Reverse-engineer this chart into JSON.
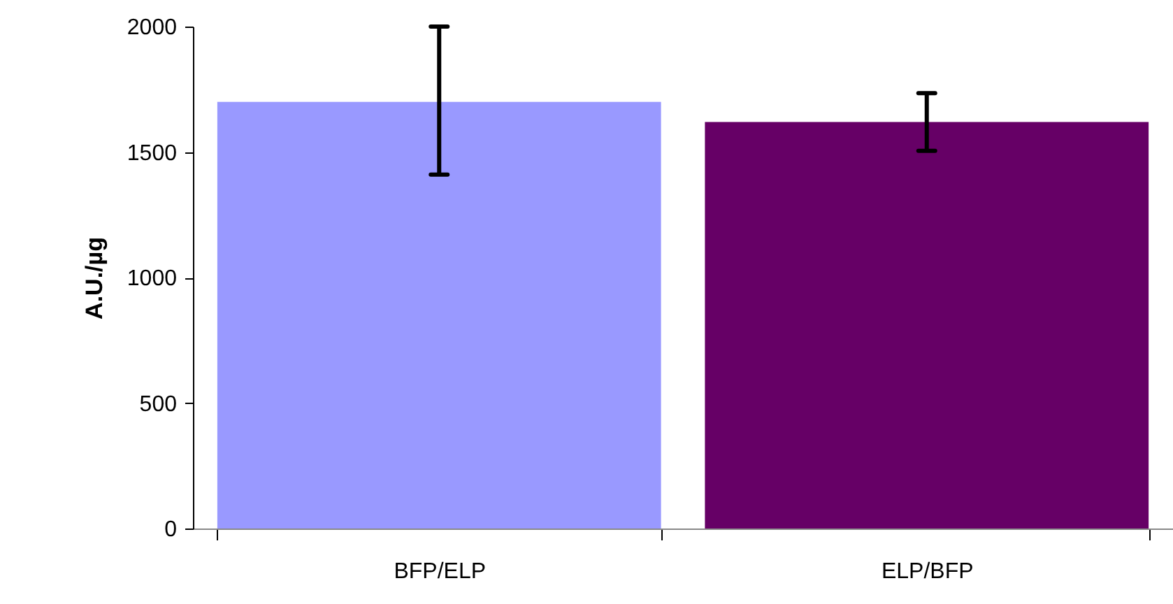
{
  "chart_data": {
    "type": "bar",
    "ylabel": "A.U./µg",
    "categories": [
      "BFP/ELP",
      "ELP/BFP"
    ],
    "values": [
      1700,
      1620
    ],
    "colors": [
      "#9999ff",
      "#660066"
    ],
    "errors": [
      [
        1410,
        2000
      ],
      [
        1505,
        1735
      ]
    ],
    "ylim": [
      0,
      2000
    ],
    "yticks": [
      0,
      500,
      1000,
      1500,
      2000
    ],
    "grid": false
  }
}
